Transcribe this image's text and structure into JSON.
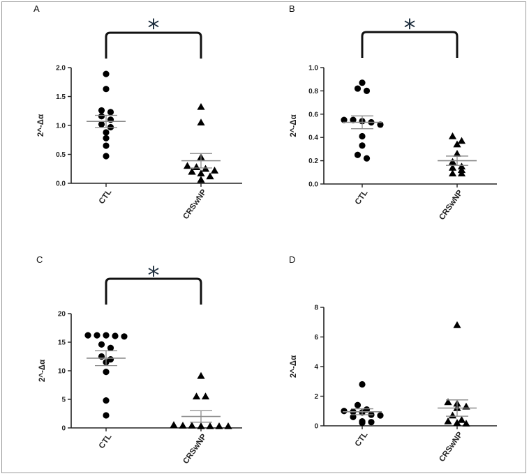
{
  "chart_data": [
    {
      "panel": "A",
      "type": "scatter",
      "ylabel": "2^-Δα",
      "ylim": [
        0,
        2.0
      ],
      "yticks": [
        "0.0",
        "0.5",
        "1.0",
        "1.5",
        "2.0"
      ],
      "categories": [
        "CTL",
        "CRSwNP"
      ],
      "significance": "*",
      "groups": [
        {
          "name": "CTL",
          "marker": "circle",
          "mean": 1.07,
          "sem": 0.105,
          "values": [
            1.89,
            1.63,
            1.26,
            1.23,
            1.16,
            1.1,
            1.02,
            0.97,
            0.88,
            0.78,
            0.65,
            0.47
          ]
        },
        {
          "name": "CRSwNP",
          "marker": "triangle",
          "mean": 0.39,
          "sem": 0.125,
          "values": [
            1.32,
            1.05,
            0.45,
            0.3,
            0.28,
            0.25,
            0.22,
            0.2,
            0.17,
            0.12,
            0.06
          ]
        }
      ]
    },
    {
      "panel": "B",
      "type": "scatter",
      "ylabel": "2^-Δα",
      "ylim": [
        0,
        1.0
      ],
      "yticks": [
        "0.0",
        "0.2",
        "0.4",
        "0.6",
        "0.8",
        "1.0"
      ],
      "categories": [
        "CTL",
        "CRSwNP"
      ],
      "significance": "*",
      "groups": [
        {
          "name": "CTL",
          "marker": "circle",
          "mean": 0.53,
          "sem": 0.055,
          "values": [
            0.87,
            0.82,
            0.8,
            0.55,
            0.55,
            0.54,
            0.53,
            0.51,
            0.41,
            0.33,
            0.25,
            0.22
          ]
        },
        {
          "name": "CRSwNP",
          "marker": "triangle",
          "mean": 0.2,
          "sem": 0.04,
          "values": [
            0.41,
            0.37,
            0.34,
            0.26,
            0.19,
            0.15,
            0.14,
            0.12,
            0.09,
            0.09
          ]
        }
      ]
    },
    {
      "panel": "C",
      "type": "scatter",
      "ylabel": "2^-Δα",
      "ylim": [
        0,
        20
      ],
      "yticks": [
        "0",
        "5",
        "10",
        "15",
        "20"
      ],
      "categories": [
        "CTL",
        "CRSwNP"
      ],
      "significance": "*",
      "groups": [
        {
          "name": "CTL",
          "marker": "circle",
          "mean": 12.2,
          "sem": 1.3,
          "values": [
            16.2,
            16.1,
            16.2,
            16.0,
            16.2,
            14.6,
            14.0,
            12.5,
            12.0,
            11.5,
            9.8,
            4.8,
            2.2
          ]
        },
        {
          "name": "CRSwNP",
          "marker": "triangle",
          "mean": 2.0,
          "sem": 1.0,
          "values": [
            9.1,
            5.5,
            5.5,
            0.5,
            0.4,
            0.4,
            0.3,
            0.3,
            0.3,
            0.3
          ]
        }
      ]
    },
    {
      "panel": "D",
      "type": "scatter",
      "ylabel": "2^-Δα",
      "ylim": [
        0,
        8
      ],
      "yticks": [
        "0",
        "2",
        "4",
        "6",
        "8"
      ],
      "categories": [
        "CTL",
        "CRSwNP"
      ],
      "significance": "",
      "groups": [
        {
          "name": "CTL",
          "marker": "circle",
          "mean": 0.95,
          "sem": 0.2,
          "values": [
            2.8,
            1.4,
            1.1,
            1.0,
            0.95,
            0.9,
            0.75,
            0.7,
            0.6,
            0.3,
            0.25,
            0.2
          ]
        },
        {
          "name": "CRSwNP",
          "marker": "triangle",
          "mean": 1.2,
          "sem": 0.55,
          "values": [
            6.8,
            1.6,
            1.5,
            1.3,
            1.2,
            0.7,
            0.4,
            0.3,
            0.2,
            0.15
          ]
        }
      ]
    }
  ]
}
